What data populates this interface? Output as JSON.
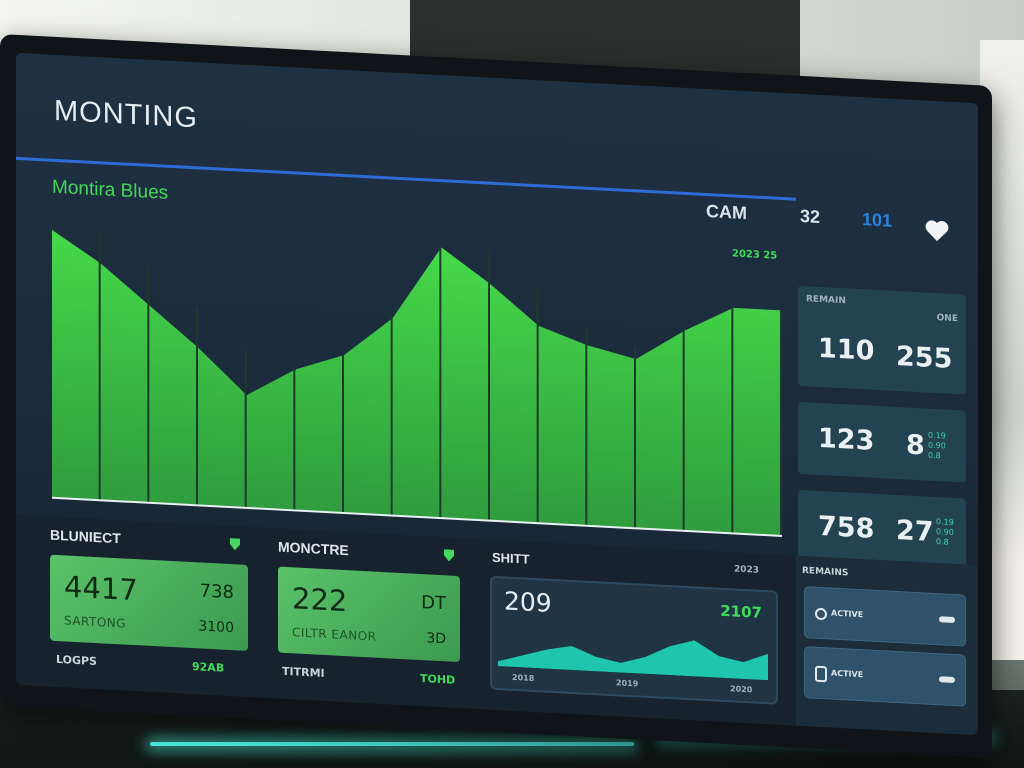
{
  "app": {
    "title": "MONTING"
  },
  "chart": {
    "title": "Montira Blues",
    "corner_tag": "2023 25"
  },
  "top_bar": {
    "items": [
      "CAM",
      "32",
      "101"
    ],
    "heart_icon": "heart-icon"
  },
  "chart_data": {
    "type": "area",
    "title": "Montira Blues",
    "x": [
      1,
      2,
      3,
      4,
      5,
      6,
      7,
      8,
      9,
      10,
      11,
      12,
      13,
      14,
      15
    ],
    "values": [
      95,
      84,
      70,
      56,
      40,
      50,
      56,
      70,
      96,
      84,
      70,
      64,
      60,
      71,
      80
    ],
    "ylim": [
      0,
      100
    ],
    "grid": false,
    "color": "#4bd94a"
  },
  "stats": [
    {
      "label": "REMAIN",
      "corner": "ONE",
      "left": "110",
      "right": "255"
    },
    {
      "left": "123",
      "right": "8",
      "tiny": [
        "0.19",
        "0.90",
        "0.8"
      ]
    },
    {
      "left": "758",
      "right": "27",
      "tiny": [
        "0.19",
        "0.90",
        "0.8"
      ]
    }
  ],
  "panels": [
    {
      "label": "BLUNIECT",
      "big": "4417",
      "right_top": "738",
      "sub_left": "SARTONG",
      "sub_right": "3100",
      "foot_left": "LOGPS",
      "foot_right": "92AB"
    },
    {
      "label": "MONCTRE",
      "big": "222",
      "right_top": "DT",
      "sub_left": "CILTR EANOR",
      "sub_right": "3D",
      "foot_left": "TITRMI",
      "foot_right": "TOHD"
    }
  ],
  "mini_chart": {
    "label": "SHITT",
    "corner": "2023",
    "big": "209",
    "right": "2107",
    "axis": [
      "2018",
      "2019",
      "2020"
    ],
    "values": [
      4,
      10,
      16,
      20,
      12,
      8,
      14,
      24,
      30,
      18,
      14,
      22
    ],
    "color": "#20e0c0"
  },
  "side_panel": {
    "label": "REMAINS",
    "items": [
      "ACTIVE",
      "ACTIVE"
    ]
  },
  "colors": {
    "accent": "#2f6bd6",
    "green": "#4bd94a",
    "teal": "#20e0c0"
  }
}
